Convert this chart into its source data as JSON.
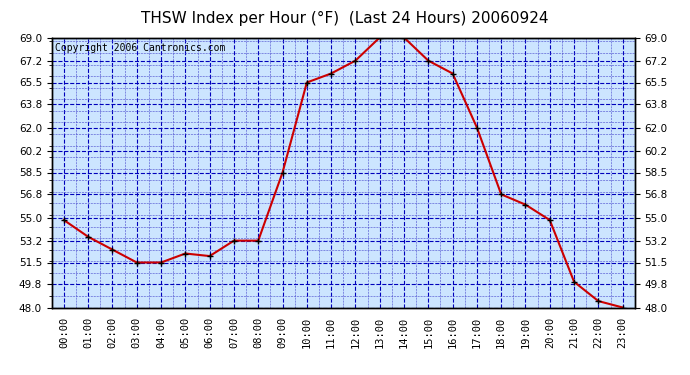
{
  "title": "THSW Index per Hour (°F)  (Last 24 Hours) 20060924",
  "copyright": "Copyright 2006 Cantronics.com",
  "hours": [
    "00:00",
    "01:00",
    "02:00",
    "03:00",
    "04:00",
    "05:00",
    "06:00",
    "07:00",
    "08:00",
    "09:00",
    "10:00",
    "11:00",
    "12:00",
    "13:00",
    "14:00",
    "15:00",
    "16:00",
    "17:00",
    "18:00",
    "19:00",
    "20:00",
    "21:00",
    "22:00",
    "23:00"
  ],
  "values": [
    54.8,
    53.5,
    52.5,
    51.5,
    51.5,
    52.2,
    52.0,
    53.2,
    53.2,
    58.5,
    65.5,
    66.2,
    67.2,
    69.0,
    69.0,
    67.2,
    66.2,
    62.0,
    56.8,
    56.0,
    54.8,
    50.0,
    48.5,
    48.0
  ],
  "ylim_min": 48.0,
  "ylim_max": 69.0,
  "ytick_values": [
    48.0,
    49.8,
    51.5,
    53.2,
    55.0,
    56.8,
    58.5,
    60.2,
    62.0,
    63.8,
    65.5,
    67.2,
    69.0
  ],
  "line_color": "#cc0000",
  "marker_color": "#000000",
  "bg_color": "#ffffff",
  "plot_bg_color": "#cce5ff",
  "grid_color_major": "#0000bb",
  "grid_color_minor": "#4444cc",
  "title_color": "#000000",
  "copyright_color": "#000000",
  "title_fontsize": 11,
  "copyright_fontsize": 7,
  "tick_fontsize": 7.5
}
